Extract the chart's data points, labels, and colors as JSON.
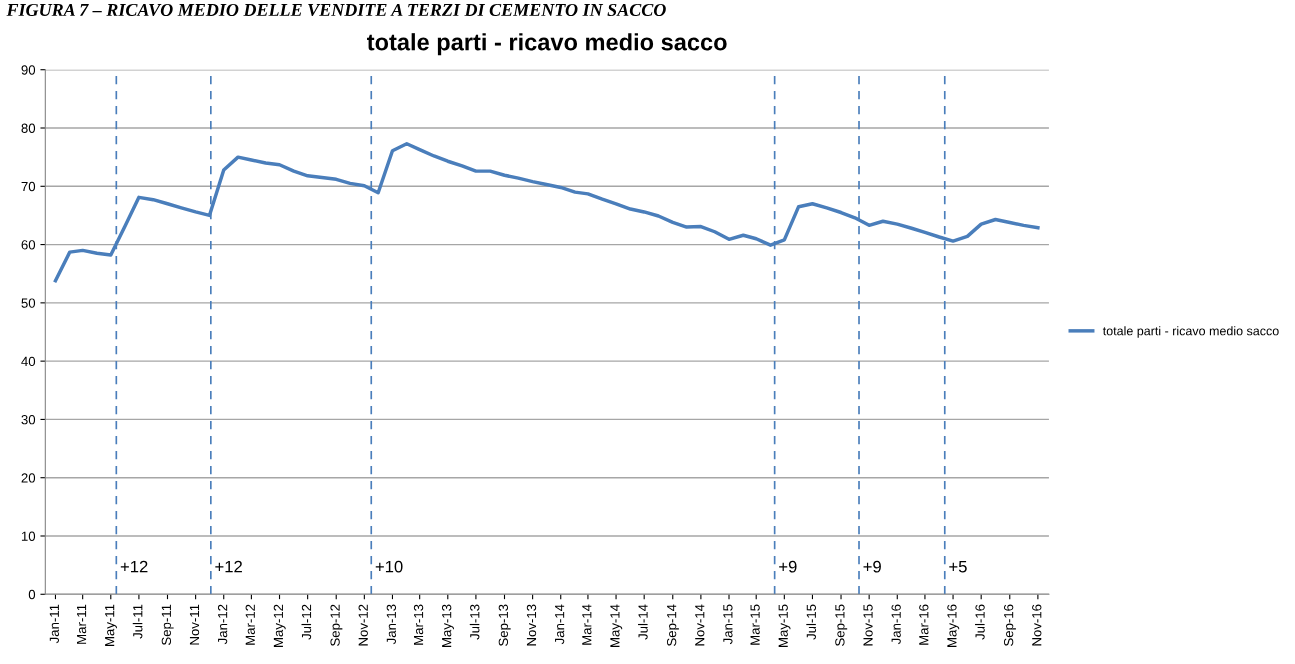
{
  "chart_data": {
    "type": "line",
    "title": "totale parti - ricavo medio sacco",
    "annotations": [
      "FIGURA 7 – RICAVO MEDIO DELLE VENDITE A TERZI DI CEMENTO IN SACCO"
    ],
    "x": [
      "2011-01",
      "2011-02",
      "2011-03",
      "2011-04",
      "2011-05",
      "2011-06",
      "2011-07",
      "2011-08",
      "2011-09",
      "2011-10",
      "2011-11",
      "2011-12",
      "2012-01",
      "2012-02",
      "2012-03",
      "2012-04",
      "2012-05",
      "2012-06",
      "2012-07",
      "2012-08",
      "2012-09",
      "2012-10",
      "2012-11",
      "2012-12",
      "2013-01",
      "2013-02",
      "2013-03",
      "2013-04",
      "2013-05",
      "2013-06",
      "2013-07",
      "2013-08",
      "2013-09",
      "2013-10",
      "2013-11",
      "2013-12",
      "2014-01",
      "2014-02",
      "2014-03",
      "2014-04",
      "2014-05",
      "2014-06",
      "2014-07",
      "2014-08",
      "2014-09",
      "2014-10",
      "2014-11",
      "2014-12",
      "2015-01",
      "2015-02",
      "2015-03",
      "2015-04",
      "2015-05",
      "2015-06",
      "2015-07",
      "2015-08",
      "2015-09",
      "2015-10",
      "2015-11",
      "2015-12",
      "2016-01",
      "2016-02",
      "2016-03",
      "2016-04",
      "2016-05",
      "2016-06",
      "2016-07",
      "2016-08",
      "2016-09",
      "2016-10",
      "2016-11"
    ],
    "series": [
      {
        "name": "totale parti - ricavo medio sacco",
        "color": "#4a7ebb",
        "values": [
          53.8,
          58.7,
          59.0,
          58.5,
          58.2,
          63.2,
          68.1,
          67.7,
          67.0,
          66.3,
          65.6,
          65.0,
          72.8,
          75.0,
          74.5,
          74.0,
          73.7,
          72.6,
          71.8,
          71.5,
          71.2,
          70.5,
          70.1,
          68.9,
          76.1,
          77.3,
          76.3,
          75.2,
          74.3,
          73.5,
          72.6,
          72.6,
          71.9,
          71.4,
          70.8,
          70.3,
          69.8,
          69.0,
          68.7,
          67.8,
          67.0,
          66.1,
          65.6,
          64.9,
          63.8,
          63.0,
          63.1,
          62.2,
          60.9,
          61.6,
          61.0,
          59.9,
          60.8,
          66.5,
          67.0,
          66.3,
          65.5,
          64.6,
          63.3,
          64.0,
          63.5,
          62.8,
          62.1,
          61.3,
          60.6,
          61.4,
          63.5,
          64.3,
          63.8,
          63.3,
          62.9
        ]
      }
    ],
    "xlim": [
      "2010-12-10",
      "2016-11-25"
    ],
    "xticks": [
      {
        "value": "2011-01",
        "label": "Jan-11"
      },
      {
        "value": "2011-03",
        "label": "Mar-11"
      },
      {
        "value": "2011-05",
        "label": "May-11"
      },
      {
        "value": "2011-07",
        "label": "Jul-11"
      },
      {
        "value": "2011-09",
        "label": "Sep-11"
      },
      {
        "value": "2011-11",
        "label": "Nov-11"
      },
      {
        "value": "2012-01",
        "label": "Jan-12"
      },
      {
        "value": "2012-03",
        "label": "Mar-12"
      },
      {
        "value": "2012-05",
        "label": "May-12"
      },
      {
        "value": "2012-07",
        "label": "Jul-12"
      },
      {
        "value": "2012-09",
        "label": "Sep-12"
      },
      {
        "value": "2012-11",
        "label": "Nov-12"
      },
      {
        "value": "2013-01",
        "label": "Jan-13"
      },
      {
        "value": "2013-03",
        "label": "Mar-13"
      },
      {
        "value": "2013-05",
        "label": "May-13"
      },
      {
        "value": "2013-07",
        "label": "Jul-13"
      },
      {
        "value": "2013-09",
        "label": "Sep-13"
      },
      {
        "value": "2013-11",
        "label": "Nov-13"
      },
      {
        "value": "2014-01",
        "label": "Jan-14"
      },
      {
        "value": "2014-03",
        "label": "Mar-14"
      },
      {
        "value": "2014-05",
        "label": "May-14"
      },
      {
        "value": "2014-07",
        "label": "Jul-14"
      },
      {
        "value": "2014-09",
        "label": "Sep-14"
      },
      {
        "value": "2014-11",
        "label": "Nov-14"
      },
      {
        "value": "2015-01",
        "label": "Jan-15"
      },
      {
        "value": "2015-03",
        "label": "Mar-15"
      },
      {
        "value": "2015-05",
        "label": "May-15"
      },
      {
        "value": "2015-07",
        "label": "Jul-15"
      },
      {
        "value": "2015-09",
        "label": "Sep-15"
      },
      {
        "value": "2015-11",
        "label": "Nov-15"
      },
      {
        "value": "2016-01",
        "label": "Jan-16"
      },
      {
        "value": "2016-03",
        "label": "Mar-16"
      },
      {
        "value": "2016-05",
        "label": "May-16"
      },
      {
        "value": "2016-07",
        "label": "Jul-16"
      },
      {
        "value": "2016-09",
        "label": "Sep-16"
      },
      {
        "value": "2016-11",
        "label": "Nov-16"
      }
    ],
    "ylim": [
      0,
      90
    ],
    "yticks": [
      0,
      10,
      20,
      30,
      40,
      50,
      60,
      70,
      80,
      90
    ],
    "ref_lines": [
      {
        "axis": "x",
        "value": "2011-05-13",
        "label": "+12",
        "color": "#4a7ebb",
        "line_style": "dashed"
      },
      {
        "axis": "x",
        "value": "2011-12-04",
        "label": "+12",
        "color": "#4a7ebb",
        "line_style": "dashed"
      },
      {
        "axis": "x",
        "value": "2012-11-16",
        "label": "+10",
        "color": "#4a7ebb",
        "line_style": "dashed"
      },
      {
        "axis": "x",
        "value": "2015-04-10",
        "label": "+9",
        "color": "#4a7ebb",
        "line_style": "dashed"
      },
      {
        "axis": "x",
        "value": "2015-10-10",
        "label": "+9",
        "color": "#4a7ebb",
        "line_style": "dashed"
      },
      {
        "axis": "x",
        "value": "2016-04-13",
        "label": "+5",
        "color": "#4a7ebb",
        "line_style": "dashed"
      }
    ],
    "grid": "y",
    "legend": "right",
    "marker": "none",
    "line_style": "solid"
  }
}
